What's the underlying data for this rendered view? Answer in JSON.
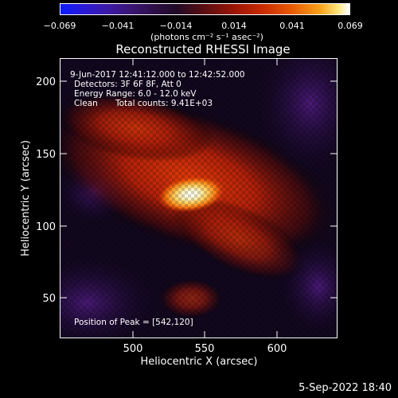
{
  "colorbar": {
    "ticks": [
      "−0.069",
      "−0.041",
      "−0.014",
      "0.014",
      "0.041",
      "0.069"
    ],
    "units_text": "(photons cm⁻² s⁻¹ asec⁻²)"
  },
  "chart_data": {
    "type": "heatmap",
    "title": "Reconstructed RHESSI Image",
    "xlabel": "Heliocentric X (arcsec)",
    "ylabel": "Heliocentric Y (arcsec)",
    "xlim": [
      450,
      640
    ],
    "ylim": [
      30,
      215
    ],
    "x_ticks": [
      500,
      550,
      600
    ],
    "y_ticks": [
      50,
      100,
      150,
      200
    ],
    "x_tick_labels": [
      "500",
      "550",
      "600"
    ],
    "y_tick_labels": [
      "50",
      "100",
      "150",
      "200"
    ],
    "value_range": [
      -0.069,
      0.069
    ],
    "peak_position": [
      542,
      120
    ],
    "annotations": {
      "time_range": "9-Jun-2017 12:41:12.000 to 12:42:52.000",
      "detectors": "Detectors: 3F 6F 8F, Att 0",
      "energy_range": "Energy Range: 6.0 - 12.0 keV",
      "method": "Clean",
      "total_counts": "Total counts: 9.41E+03",
      "peak_label": "Position of Peak = [542,120]"
    }
  },
  "footer": {
    "date": "5-Sep-2022 18:40"
  }
}
